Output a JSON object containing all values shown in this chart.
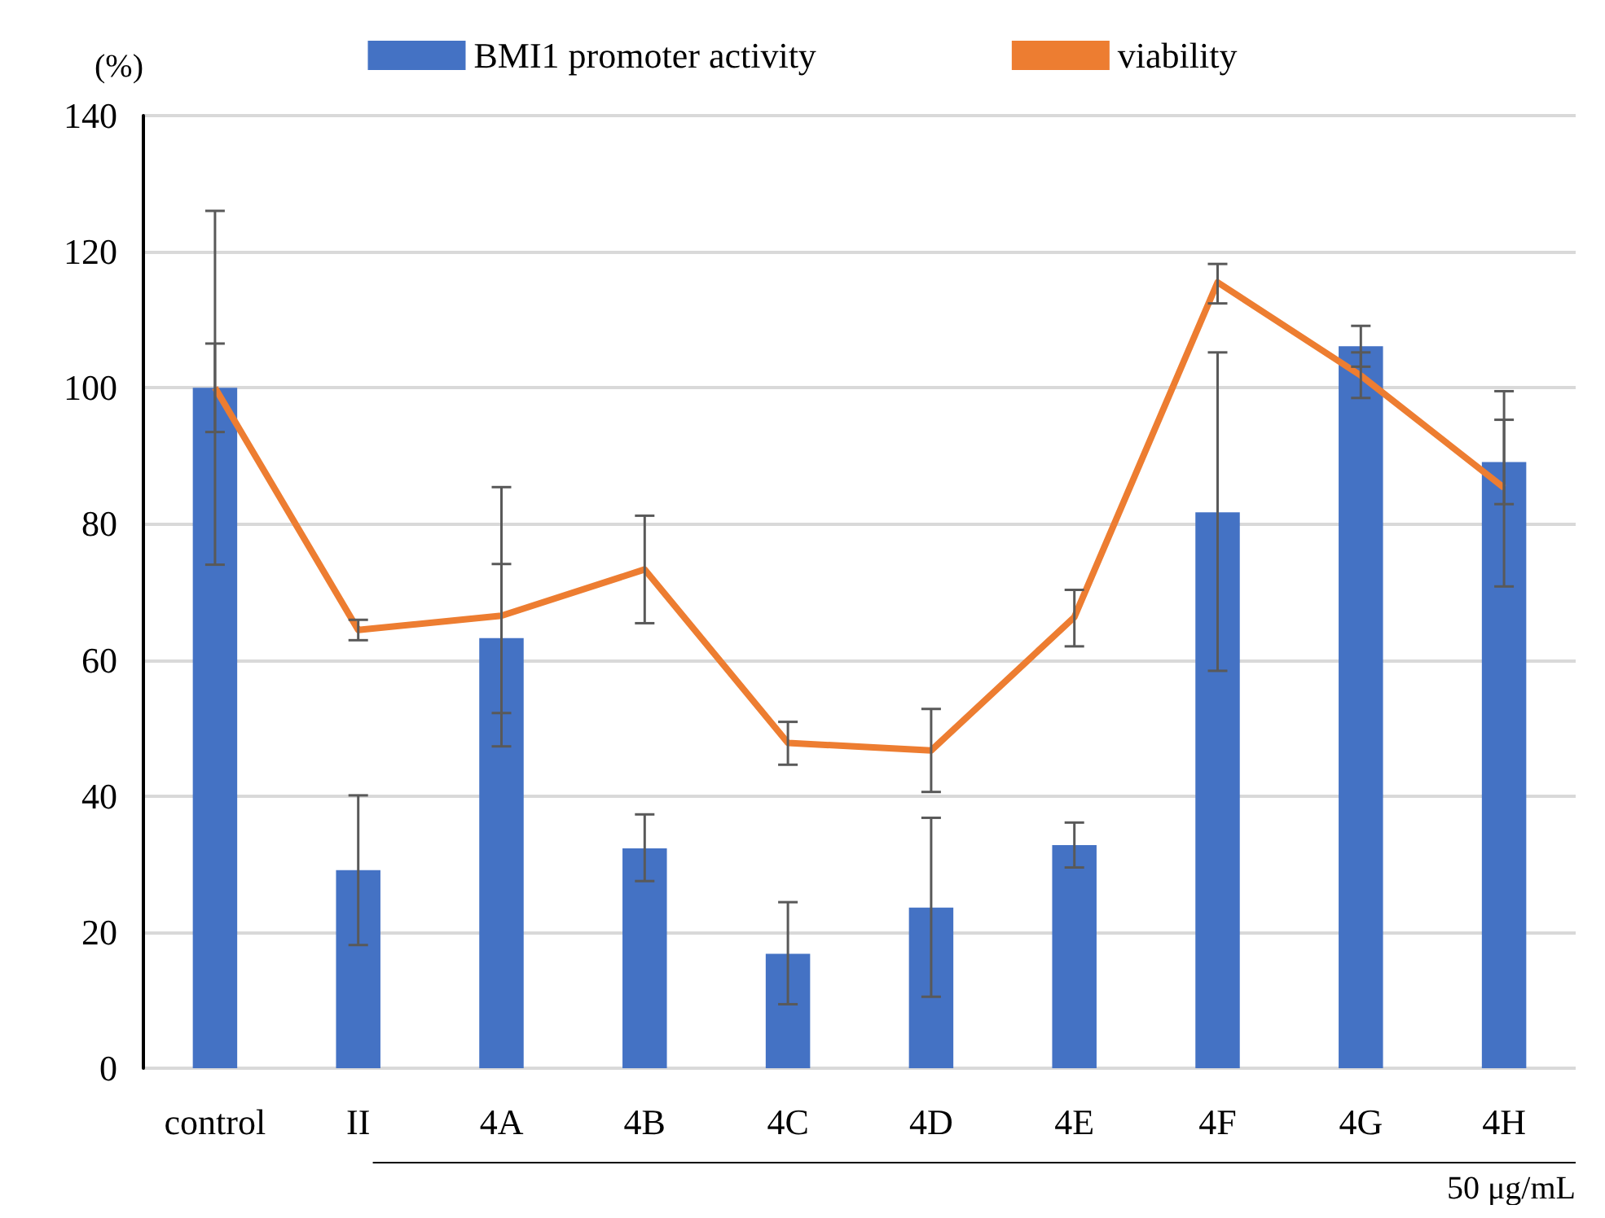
{
  "chart_data": {
    "type": "bar",
    "ylabel": "(%)",
    "categories": [
      "control",
      "II",
      "4A",
      "4B",
      "4C",
      "4D",
      "4E",
      "4F",
      "4G",
      "4H"
    ],
    "series": [
      {
        "name": "BMI1 promoter activity",
        "color": "#4472c4",
        "values": [
          100,
          29.1,
          63.2,
          32.3,
          16.8,
          23.6,
          32.8,
          81.7,
          106.1,
          89.1
        ],
        "errors": [
          26,
          11,
          [
            47.3,
            85.4
          ],
          [
            27.5,
            37.3
          ],
          [
            9.4,
            24.4
          ],
          [
            10.5,
            36.8
          ],
          [
            29.5,
            36.1
          ],
          [
            58.4,
            105.2
          ],
          3,
          [
            70.8,
            99.5
          ]
        ]
      },
      {
        "name": "viability",
        "type": "line",
        "color": "#ed7d31",
        "values": [
          100,
          64.4,
          66.5,
          73.3,
          47.8,
          46.7,
          66.3,
          115.5,
          101.8,
          85.3
        ],
        "errors": [
          6.5,
          1.5,
          [
            52.2,
            74.1
          ],
          [
            65.4,
            81.2
          ],
          [
            44.6,
            50.9
          ],
          [
            40.6,
            52.8
          ],
          [
            62.0,
            70.3
          ],
          [
            112.4,
            118.2
          ],
          [
            98.5,
            105.2
          ],
          [
            82.9,
            95.3
          ]
        ]
      }
    ],
    "ylim": [
      0,
      140
    ],
    "yticks": [
      0,
      20,
      40,
      60,
      80,
      100,
      120,
      140
    ],
    "grid": "y",
    "legend": "top",
    "annotations": [
      "50 μg/mL"
    ]
  }
}
